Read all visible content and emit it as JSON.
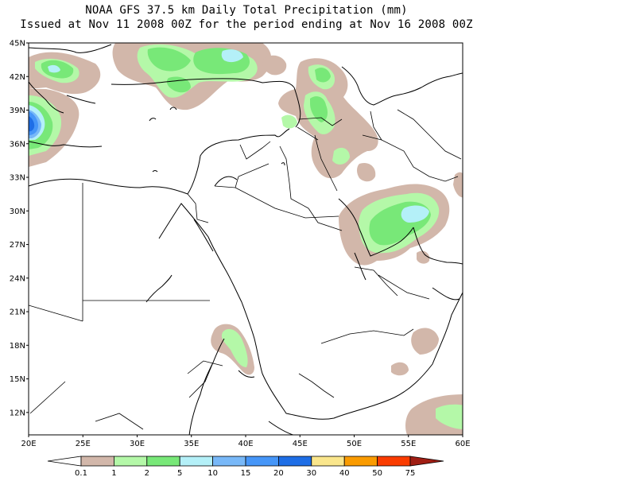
{
  "header": {
    "title": "NOAA GFS 37.5 km Daily Total Precipitation (mm)",
    "subtitle": "Issued at Nov 11 2008 00Z for the period ending at Nov 16 2008 00Z"
  },
  "map": {
    "lat_labels": [
      "45N",
      "42N",
      "39N",
      "36N",
      "33N",
      "30N",
      "27N",
      "24N",
      "21N",
      "18N",
      "15N",
      "12N"
    ],
    "lon_labels": [
      "20E",
      "25E",
      "30E",
      "35E",
      "40E",
      "45E",
      "50E",
      "55E",
      "60E"
    ],
    "extent": {
      "lon_min": 20,
      "lon_max": 60,
      "lat_min": 10,
      "lat_max": 45
    }
  },
  "legend": {
    "labels": [
      "0.1",
      "1",
      "2",
      "5",
      "10",
      "15",
      "20",
      "30",
      "40",
      "50",
      "75"
    ],
    "colors": [
      "#ffffff",
      "#d2b7aa",
      "#b4f8a8",
      "#78e878",
      "#b4f0f8",
      "#78b8f8",
      "#4696f8",
      "#1e6ee6",
      "#fae68c",
      "#fa9b00",
      "#fa3c00",
      "#a01e14"
    ]
  },
  "palette": {
    "trace": "#d2b7aa",
    "light_green": "#b4f8a8",
    "green": "#78e878",
    "light_cyan": "#b4f0f8",
    "light_blue": "#78b8f8",
    "blue": "#4696f8",
    "dark_blue": "#1e6ee6"
  }
}
